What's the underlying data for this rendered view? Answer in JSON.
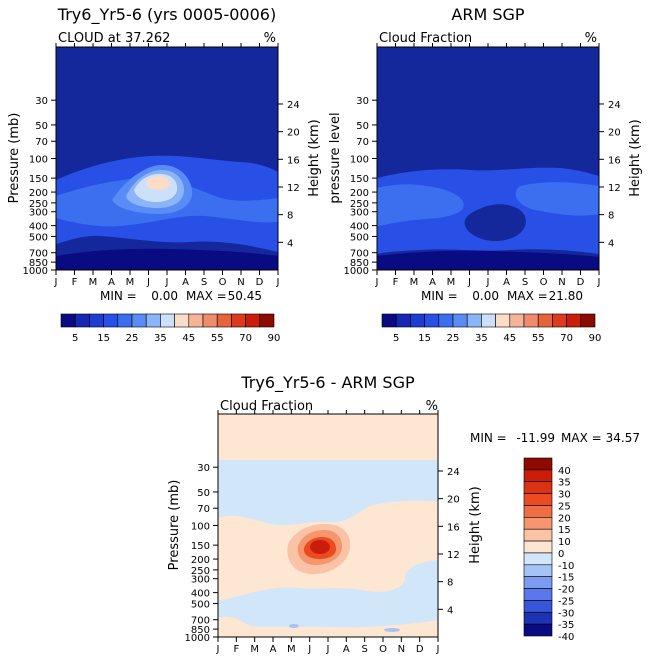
{
  "chart_data": [
    {
      "type": "contour",
      "title": "Try6_Yr5-6 (yrs 0005-0006)",
      "subtitle": "CLOUD at 37.262",
      "units": "%",
      "ylabel": "Pressure (mb)",
      "ylabel_right": "Height (km)",
      "x_ticks": [
        "J",
        "F",
        "M",
        "A",
        "M",
        "J",
        "J",
        "A",
        "S",
        "O",
        "N",
        "D",
        "J"
      ],
      "pressure_ticks": [
        30,
        50,
        70,
        100,
        150,
        200,
        250,
        300,
        400,
        500,
        700,
        850,
        1000
      ],
      "height_ticks": [
        24,
        20,
        16,
        12,
        8,
        4
      ],
      "stats": {
        "min_label": "MIN =",
        "min": "0.00",
        "max_label": "MAX =",
        "max": "50.45"
      },
      "peak": {
        "month": "Jun-Jul",
        "pressure_mb": 225,
        "value": 50.45
      },
      "colorbar_levels": [
        5,
        10,
        15,
        20,
        25,
        30,
        35,
        40,
        45,
        50,
        55,
        60,
        70,
        80,
        90
      ],
      "colorbar_labels": [
        "5",
        "15",
        "25",
        "35",
        "45",
        "55",
        "70",
        "90"
      ]
    },
    {
      "type": "contour",
      "title": "ARM SGP",
      "subtitle": "Cloud Fraction",
      "units": "%",
      "ylabel": "pressure level",
      "ylabel_right": "Height (km)",
      "x_ticks": [
        "J",
        "F",
        "M",
        "A",
        "M",
        "J",
        "J",
        "A",
        "S",
        "O",
        "N",
        "D",
        "J"
      ],
      "pressure_ticks": [
        30,
        50,
        70,
        100,
        150,
        200,
        250,
        300,
        400,
        500,
        700,
        850,
        1000
      ],
      "height_ticks": [
        24,
        20,
        16,
        12,
        8,
        4
      ],
      "stats": {
        "min_label": "MIN =",
        "min": "0.00",
        "max_label": "MAX =",
        "max": "21.80"
      },
      "colorbar_levels": [
        5,
        10,
        15,
        20,
        25,
        30,
        35,
        40,
        45,
        50,
        55,
        60,
        70,
        80,
        90
      ],
      "colorbar_labels": [
        "5",
        "15",
        "25",
        "35",
        "45",
        "55",
        "70",
        "90"
      ]
    },
    {
      "type": "contour",
      "title": "Try6_Yr5-6 - ARM SGP",
      "subtitle": "Cloud Fraction",
      "units": "%",
      "ylabel": "Pressure (mb)",
      "ylabel_right": "Height (km)",
      "x_ticks": [
        "J",
        "F",
        "M",
        "A",
        "M",
        "J",
        "J",
        "A",
        "S",
        "O",
        "N",
        "D",
        "J"
      ],
      "pressure_ticks": [
        30,
        50,
        70,
        100,
        150,
        200,
        250,
        300,
        400,
        500,
        700,
        850,
        1000
      ],
      "height_ticks": [
        24,
        20,
        16,
        12,
        8,
        4
      ],
      "stats": {
        "min_label": "MIN =",
        "min": "-11.99",
        "max_label": "MAX =",
        "max": "34.57"
      },
      "peak": {
        "month": "Jun-Jul",
        "pressure_mb": 225,
        "value": 34.57
      },
      "colorbar_levels": [
        40,
        35,
        30,
        25,
        20,
        15,
        10,
        0,
        -10,
        -15,
        -20,
        -25,
        -30,
        -35,
        -40
      ],
      "colorbar_labels": [
        "40",
        "35",
        "30",
        "25",
        "20",
        "15",
        "10",
        "0",
        "-10",
        "-15",
        "-20",
        "-25",
        "-30",
        "-35",
        "-40"
      ]
    }
  ],
  "colors": {
    "seq_scale": [
      "#0a0a82",
      "#1428b4",
      "#1e3cd2",
      "#2850e6",
      "#3c6ef0",
      "#5a8cf5",
      "#8cb4f8",
      "#cce0fa",
      "#fadcc8",
      "#f5b496",
      "#f08c6e",
      "#e6643c",
      "#dc3c1e",
      "#c81e0a",
      "#8c0a00"
    ],
    "div_scale": [
      "#8c0a00",
      "#c81e0a",
      "#dc3214",
      "#eb4b1e",
      "#f06e46",
      "#f5966e",
      "#fac3a5",
      "#fce6d2",
      "#d2e6fa",
      "#a5c3f5",
      "#7d9bf0",
      "#5a78eb",
      "#3755d7",
      "#1e32b4",
      "#0a0a82"
    ],
    "field_dark": "#14289b",
    "field_mid": "#2850e6",
    "field_light": "#5a8cf5",
    "diff_pos": "#fde6d2",
    "diff_neg": "#d2e6fa"
  }
}
